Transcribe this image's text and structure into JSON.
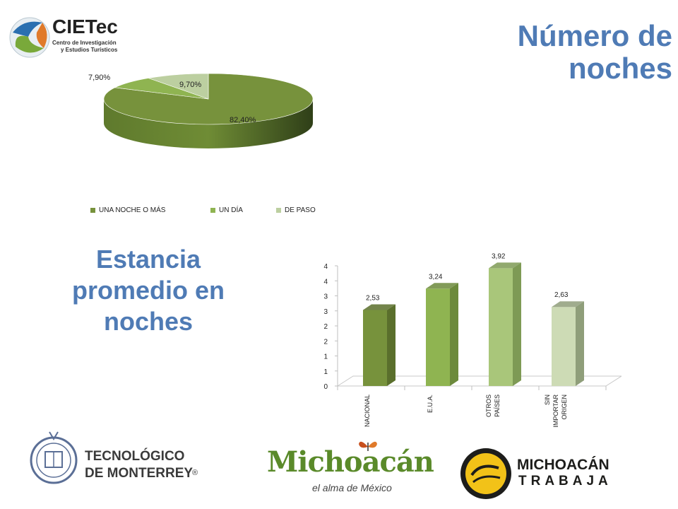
{
  "header": {
    "title": "Número de noches"
  },
  "subtitle": "Estancia promedio en noches",
  "colors": {
    "accent": "#4f7bb5",
    "dark_green": "#77923c",
    "mid_green": "#8fb451",
    "light_green": "#a9c67a",
    "pale_green": "#cddbb5"
  },
  "logos": {
    "cietec_name": "CIETec",
    "cietec_sub1": "Centro de Investigación",
    "cietec_sub2": "y Estudios Turísticos",
    "tec_line1": "TECNOLÓGICO",
    "tec_line2": "DE MONTERREY",
    "tec_mark": "®",
    "michoacan_name": "Michoacán",
    "michoacan_slogan": "el alma de México",
    "trabaja_line1": "MICHOACÁN",
    "trabaja_line2": "TRABAJA"
  },
  "chart_data": [
    {
      "type": "pie",
      "categories": [
        "UNA NOCHE O MÁS",
        "UN DÍA",
        "DE PASO"
      ],
      "values": [
        82.4,
        7.9,
        9.7
      ],
      "labels": [
        "82,40%",
        "7,90%",
        "9,70%"
      ],
      "colors": [
        "#77923c",
        "#8fb451",
        "#bccfa0"
      ],
      "legend": "bottom"
    },
    {
      "type": "bar",
      "categories": [
        "NACIONAL",
        "E.U.A.",
        "OTROS PAÍSES",
        "SIN IMPORTAR ORIGEN"
      ],
      "values": [
        2.53,
        3.24,
        3.92,
        2.63
      ],
      "labels": [
        "2,53",
        "3,24",
        "3,92",
        "2,63"
      ],
      "colors": [
        "#77923c",
        "#8fb451",
        "#a9c67a",
        "#cddbb5"
      ],
      "yticks": [
        "0",
        "1",
        "1",
        "2",
        "2",
        "3",
        "3",
        "4",
        "4"
      ],
      "ylim": [
        0,
        4
      ]
    }
  ]
}
